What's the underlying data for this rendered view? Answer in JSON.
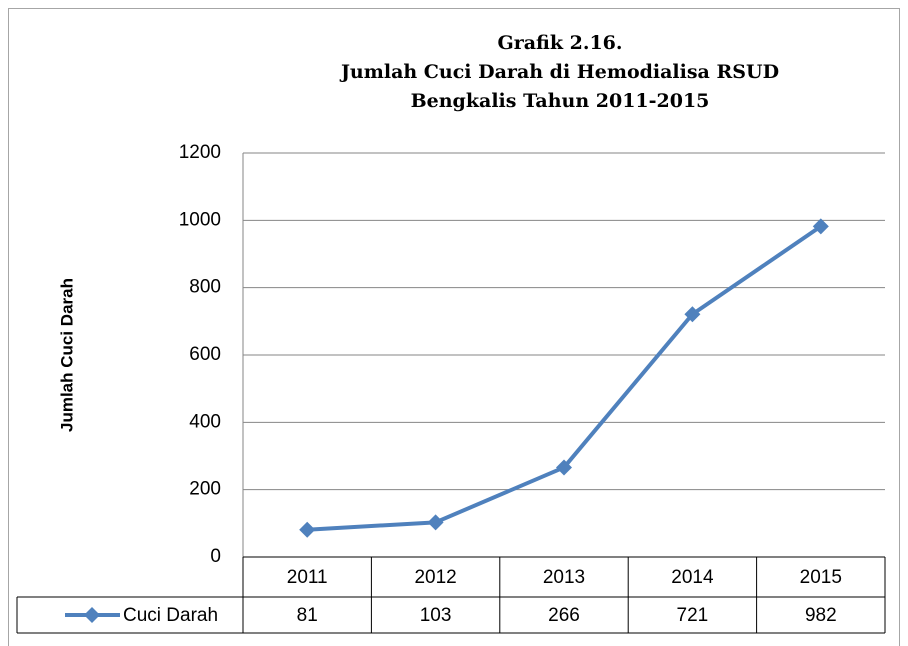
{
  "chart_data": {
    "type": "line",
    "title_lines": [
      "Grafik 2.16.",
      "Jumlah Cuci Darah di Hemodialisa RSUD",
      "Bengkalis Tahun 2011-2015"
    ],
    "y_label": "Jumlah Cuci Darah",
    "categories": [
      "2011",
      "2012",
      "2013",
      "2014",
      "2015"
    ],
    "series": [
      {
        "name": "Cuci Darah",
        "color": "#4f81bd",
        "values": [
          81,
          103,
          266,
          721,
          982
        ]
      }
    ],
    "ylim": [
      0,
      1200
    ],
    "yticks": [
      0,
      200,
      400,
      600,
      800,
      1000,
      1200
    ],
    "grid": true,
    "data_table": true
  }
}
